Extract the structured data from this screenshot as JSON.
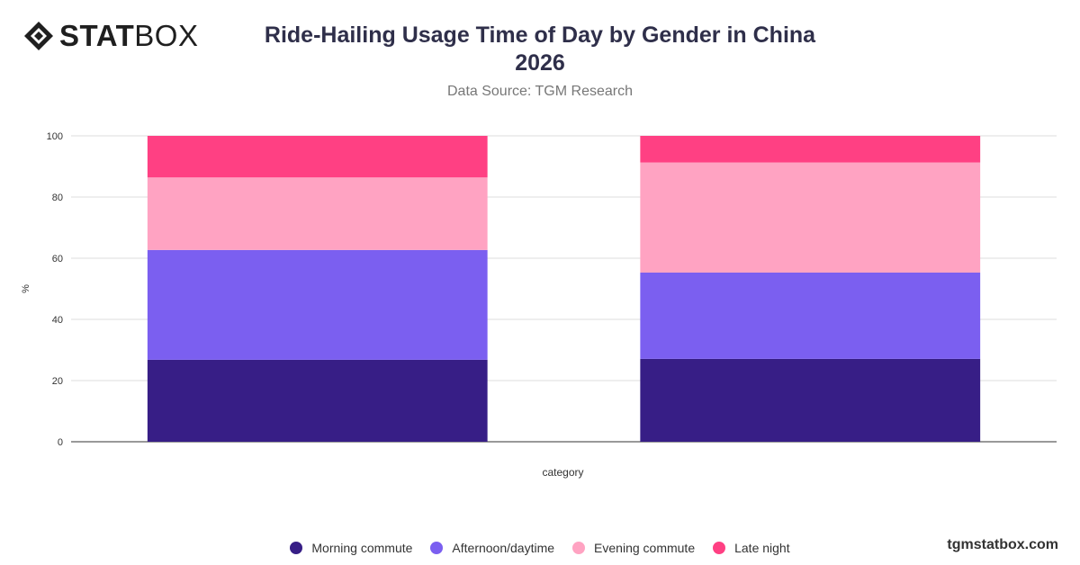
{
  "brand": {
    "logo_text": "STATBOX",
    "logo_bold": "STAT",
    "logo_light": "BOX",
    "watermark": "tgmstatbox.com"
  },
  "header": {
    "title": "Ride-Hailing Usage Time of Day by Gender in China 2026",
    "subtitle": "Data Source: TGM Research"
  },
  "colors": {
    "morning": "#371e86",
    "afternoon": "#7b5ff0",
    "evening": "#ffa3c2",
    "late": "#ff4083",
    "grid": "#dddddd",
    "axis": "#333333"
  },
  "chart_data": {
    "type": "bar",
    "stacked": true,
    "categories": [
      "",
      ""
    ],
    "series": [
      {
        "name": "Morning commute",
        "values": [
          26.8,
          27.1
        ]
      },
      {
        "name": "Afternoon/daytime",
        "values": [
          35.9,
          28.2
        ]
      },
      {
        "name": "Evening commute",
        "values": [
          23.7,
          36.0
        ]
      },
      {
        "name": "Late night",
        "values": [
          13.6,
          8.7
        ]
      }
    ],
    "title": "Ride-Hailing Usage Time of Day by Gender in China 2026",
    "xlabel": "category",
    "ylabel": "%",
    "ylim": [
      0,
      100
    ],
    "yticks": [
      0,
      20,
      40,
      60,
      80,
      100
    ],
    "grid": true,
    "legend": "bottom"
  }
}
